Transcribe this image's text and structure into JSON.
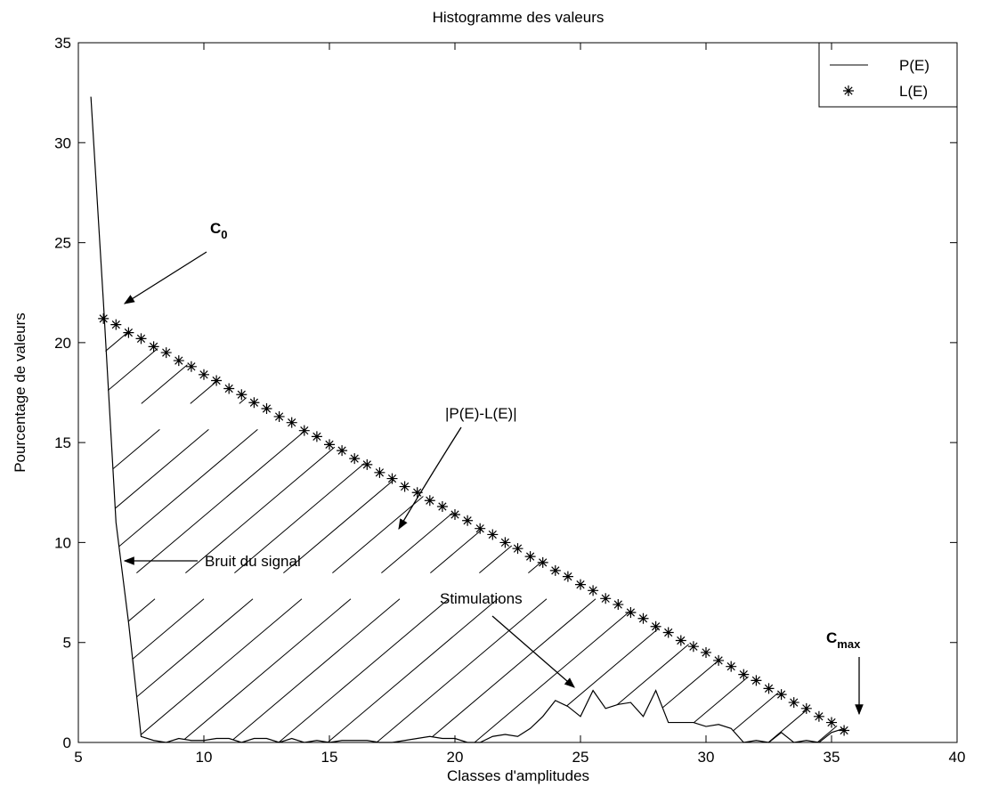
{
  "chart_data": {
    "type": "line",
    "title": "Histogramme des valeurs",
    "xlabel": "Classes d'amplitudes",
    "ylabel": "Pourcentage de valeurs",
    "xlim": [
      5,
      40
    ],
    "xticks": [
      5,
      10,
      15,
      20,
      25,
      30,
      35,
      40
    ],
    "ylim": [
      0,
      35
    ],
    "yticks": [
      0,
      5,
      10,
      15,
      20,
      25,
      30,
      35
    ],
    "legend": "upper right",
    "series": [
      {
        "name": "P(E)",
        "color": "#000000",
        "style": "line",
        "x": [
          5.5,
          6,
          6.5,
          7,
          7.5,
          8,
          8.5,
          9,
          9.5,
          10,
          10.5,
          11,
          11.5,
          12,
          12.5,
          13,
          13.5,
          14,
          14.5,
          15,
          15.5,
          16,
          16.5,
          17,
          17.5,
          18,
          18.5,
          19,
          19.5,
          20,
          20.5,
          21,
          21.5,
          22,
          22.5,
          23,
          23.5,
          24,
          24.5,
          25,
          25.5,
          26,
          26.5,
          27,
          27.5,
          28,
          28.5,
          29,
          29.5,
          30,
          30.5,
          31,
          31.5,
          32,
          32.5,
          33,
          33.5,
          34,
          34.5,
          35,
          35.5
        ],
        "values": [
          32.3,
          22,
          11,
          6,
          0.3,
          0.1,
          0,
          0.2,
          0.1,
          0.1,
          0.2,
          0.2,
          0,
          0.2,
          0.2,
          0,
          0.2,
          0,
          0.1,
          0,
          0.1,
          0.1,
          0.1,
          0,
          0,
          0.1,
          0.2,
          0.3,
          0.2,
          0.2,
          0,
          0,
          0.3,
          0.4,
          0.3,
          0.7,
          1.3,
          2.1,
          1.8,
          1.3,
          2.6,
          1.7,
          1.9,
          2,
          1.3,
          2.6,
          1,
          1,
          1,
          0.8,
          0.9,
          0.7,
          0,
          0.1,
          0,
          0.5,
          0,
          0.1,
          0,
          0.5,
          0.7
        ]
      },
      {
        "name": "L(E)",
        "color": "#000000",
        "style": "star",
        "x": [
          6,
          6.5,
          7,
          7.5,
          8,
          8.5,
          9,
          9.5,
          10,
          10.5,
          11,
          11.5,
          12,
          12.5,
          13,
          13.5,
          14,
          14.5,
          15,
          15.5,
          16,
          16.5,
          17,
          17.5,
          18,
          18.5,
          19,
          19.5,
          20,
          20.5,
          21,
          21.5,
          22,
          22.5,
          23,
          23.5,
          24,
          24.5,
          25,
          25.5,
          26,
          26.5,
          27,
          27.5,
          28,
          28.5,
          29,
          29.5,
          30,
          30.5,
          31,
          31.5,
          32,
          32.5,
          33,
          33.5,
          34,
          34.5,
          35,
          35.5
        ],
        "values": [
          21.2,
          20.9,
          20.5,
          20.2,
          19.8,
          19.5,
          19.1,
          18.8,
          18.4,
          18.1,
          17.7,
          17.4,
          17.0,
          16.7,
          16.3,
          16.0,
          15.6,
          15.3,
          14.9,
          14.6,
          14.2,
          13.9,
          13.5,
          13.2,
          12.8,
          12.5,
          12.1,
          11.8,
          11.4,
          11.1,
          10.7,
          10.4,
          10.0,
          9.7,
          9.3,
          9.0,
          8.6,
          8.3,
          7.9,
          7.6,
          7.2,
          6.9,
          6.5,
          6.2,
          5.8,
          5.5,
          5.1,
          4.8,
          4.5,
          4.1,
          3.8,
          3.4,
          3.1,
          2.7,
          2.4,
          2.0,
          1.7,
          1.3,
          1.0,
          0.6
        ]
      }
    ],
    "annotations": [
      {
        "text": "C",
        "sub": "0"
      },
      {
        "text": "|P(E)-L(E)|"
      },
      {
        "text": "Bruit du signal"
      },
      {
        "text": "Stimulations"
      },
      {
        "text": "C",
        "sub": "max"
      }
    ]
  }
}
